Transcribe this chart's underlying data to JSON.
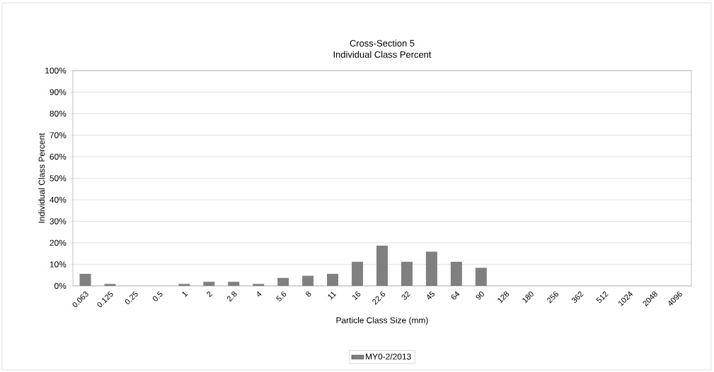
{
  "chart_data": {
    "type": "bar",
    "title": "Cross-Section 5",
    "subtitle": "Individual Class Percent",
    "xlabel": "Particle Class Size (mm)",
    "ylabel": "Individual Class Percent",
    "categories": [
      "0.063",
      "0.125",
      "0.25",
      "0.5",
      "1",
      "2",
      "2.8",
      "4",
      "5.6",
      "8",
      "11",
      "16",
      "22.6",
      "32",
      "45",
      "64",
      "90",
      "128",
      "180",
      "256",
      "362",
      "512",
      "1024",
      "2048",
      "4096"
    ],
    "series": [
      {
        "name": "MY0-2/2013",
        "color": "#808080",
        "values": [
          5.6,
          0.9,
          0,
          0,
          0.9,
          1.9,
          1.9,
          0.9,
          3.7,
          4.7,
          5.6,
          11.2,
          18.7,
          11.2,
          15.9,
          11.2,
          8.4,
          0,
          0,
          0,
          0,
          0,
          0,
          0,
          0
        ]
      }
    ],
    "ylim": [
      0,
      100
    ],
    "yticks": [
      {
        "value": 0,
        "label": "0%"
      },
      {
        "value": 10,
        "label": "10%"
      },
      {
        "value": 20,
        "label": "20%"
      },
      {
        "value": 30,
        "label": "30%"
      },
      {
        "value": 40,
        "label": "40%"
      },
      {
        "value": 50,
        "label": "50%"
      },
      {
        "value": 60,
        "label": "60%"
      },
      {
        "value": 70,
        "label": "70%"
      },
      {
        "value": 80,
        "label": "80%"
      },
      {
        "value": 90,
        "label": "90%"
      },
      {
        "value": 100,
        "label": "100%"
      }
    ],
    "grid": "y",
    "legend": "bottom"
  }
}
